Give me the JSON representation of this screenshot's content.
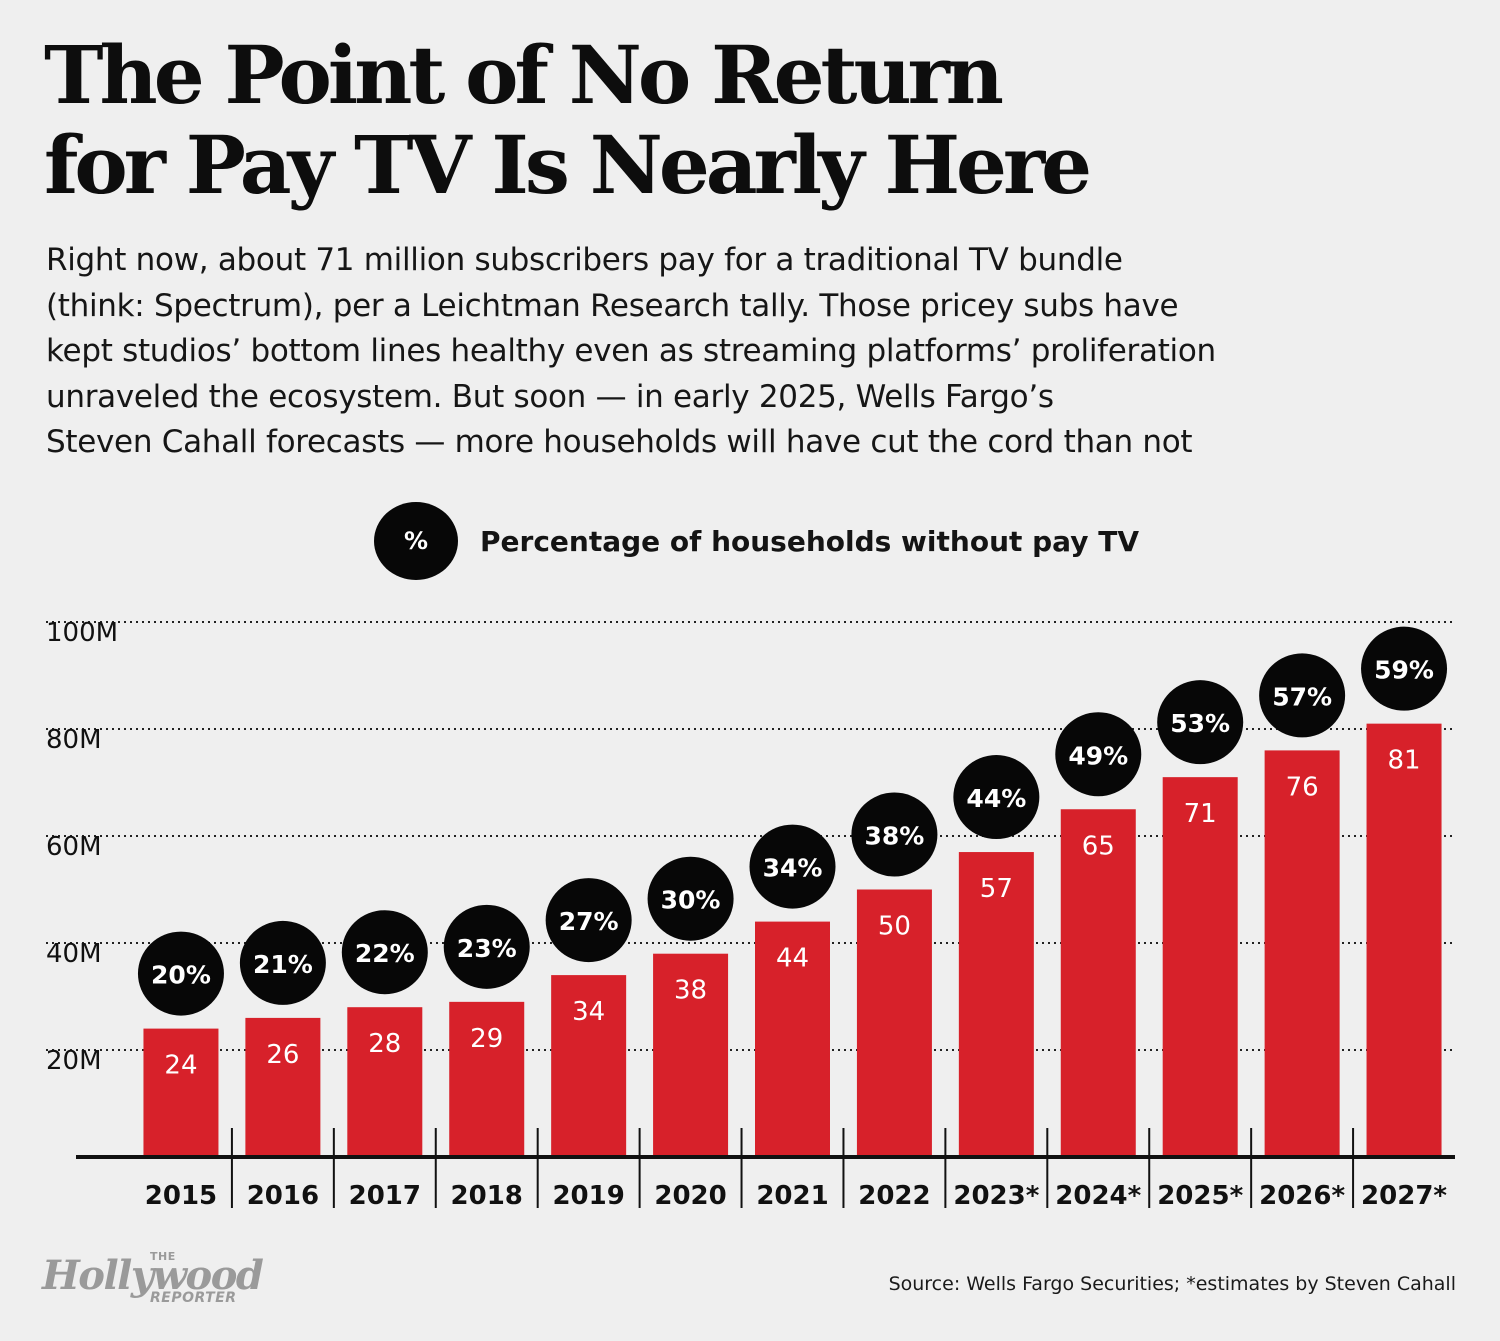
{
  "headline": {
    "line1": "The Point of No Return",
    "line2": "for Pay TV Is Nearly Here"
  },
  "deck": {
    "lines": [
      "Right now, about 71 million subscribers pay for a traditional TV bundle",
      "(think: Spectrum), per a Leichtman Research tally. Those pricey subs have",
      "kept studios’ bottom lines healthy even as streaming platforms’ proliferation",
      "unraveled the ecosystem. But soon — in early 2025, Wells Fargo’s",
      "Steven Cahall forecasts — more households will have cut the cord than not"
    ]
  },
  "legend": {
    "symbol": "%",
    "label": "Percentage of households without pay TV"
  },
  "colors": {
    "bar": "#d7212a",
    "circle": "#070707",
    "background": "#efefef",
    "axis": "#111111"
  },
  "chart_data": {
    "type": "bar",
    "categories": [
      "2015",
      "2016",
      "2017",
      "2018",
      "2019",
      "2020",
      "2021",
      "2022",
      "2023*",
      "2024*",
      "2025*",
      "2026*",
      "2027*"
    ],
    "values": [
      24,
      26,
      28,
      29,
      34,
      38,
      44,
      50,
      57,
      65,
      71,
      76,
      81
    ],
    "value_labels": [
      "24",
      "26",
      "28",
      "29",
      "34",
      "38",
      "44",
      "50",
      "57",
      "65",
      "71",
      "76",
      "81"
    ],
    "percent_labels": [
      "20%",
      "21%",
      "22%",
      "23%",
      "27%",
      "30%",
      "34%",
      "38%",
      "44%",
      "49%",
      "53%",
      "57%",
      "59%"
    ],
    "y_ticks": [
      20,
      40,
      60,
      80,
      100
    ],
    "y_tick_labels": [
      "20M",
      "40M",
      "60M",
      "80M",
      "100M"
    ],
    "ylim": [
      0,
      100
    ],
    "grid": "dotted horizontal",
    "legend_position": "top"
  },
  "source": "Source: Wells Fargo Securities; *estimates by Steven Cahall",
  "logo": {
    "the": "THE",
    "name": "Hollywood",
    "reporter": "REPORTER"
  }
}
